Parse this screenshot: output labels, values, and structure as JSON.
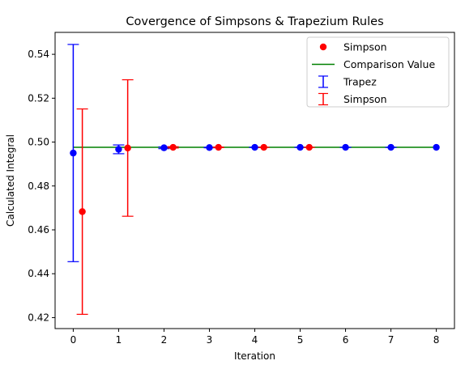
{
  "chart_data": {
    "type": "scatter",
    "title": "Covergence of Simpsons & Trapezium Rules",
    "xlabel": "Iteration",
    "ylabel": "Calculated Integral",
    "xlim": [
      -0.4,
      8.4
    ],
    "ylim": [
      0.415,
      0.55
    ],
    "x_ticks": [
      "0",
      "1",
      "2",
      "3",
      "4",
      "5",
      "6",
      "7",
      "8"
    ],
    "x_tick_values": [
      0,
      1,
      2,
      3,
      4,
      5,
      6,
      7,
      8
    ],
    "y_ticks": [
      "0.42",
      "0.44",
      "0.46",
      "0.48",
      "0.50",
      "0.52",
      "0.54"
    ],
    "y_tick_values": [
      0.42,
      0.44,
      0.46,
      0.48,
      0.5,
      0.52,
      0.54
    ],
    "grid": false,
    "legend_position": "upper right",
    "comparison_value": {
      "name": "Comparison Value",
      "color": "#008000",
      "x_range": [
        0,
        8
      ],
      "y": 0.4976
    },
    "trapez_points": {
      "color": "#0000ff",
      "x": [
        0,
        1,
        2,
        3,
        4,
        5,
        6,
        7,
        8
      ],
      "y": [
        0.495,
        0.4967,
        0.4974,
        0.4975,
        0.4976,
        0.4976,
        0.4976,
        0.4976,
        0.4976
      ]
    },
    "simpson_points": {
      "name": "Simpson",
      "color": "#ff0000",
      "x": [
        0.2,
        1.2,
        2.2,
        3.2,
        4.2,
        5.2
      ],
      "y": [
        0.4683,
        0.4973,
        0.4976,
        0.4976,
        0.4976,
        0.4976
      ]
    },
    "trapez_errorbars": {
      "name": "Trapez",
      "color": "#0000ff",
      "x": [
        0,
        1,
        2,
        3,
        4,
        5,
        6,
        7,
        8
      ],
      "y": [
        0.495,
        0.4967,
        0.4974,
        0.4975,
        0.4976,
        0.4976,
        0.4976,
        0.4976,
        0.4976
      ],
      "err": [
        0.0495,
        0.002,
        0.0004,
        0.0001,
        5e-05,
        2e-05,
        1e-05,
        1e-05,
        0.0
      ]
    },
    "simpson_errorbars": {
      "name": "Simpson",
      "color": "#ff0000",
      "x": [
        0.2,
        1.2,
        2.2,
        3.2,
        4.2,
        5.2
      ],
      "y": [
        0.4683,
        0.4973,
        0.4976,
        0.4976,
        0.4976,
        0.4976
      ],
      "err": [
        0.0468,
        0.0311,
        0.0003,
        0.0001,
        3e-05,
        1e-05
      ]
    }
  }
}
